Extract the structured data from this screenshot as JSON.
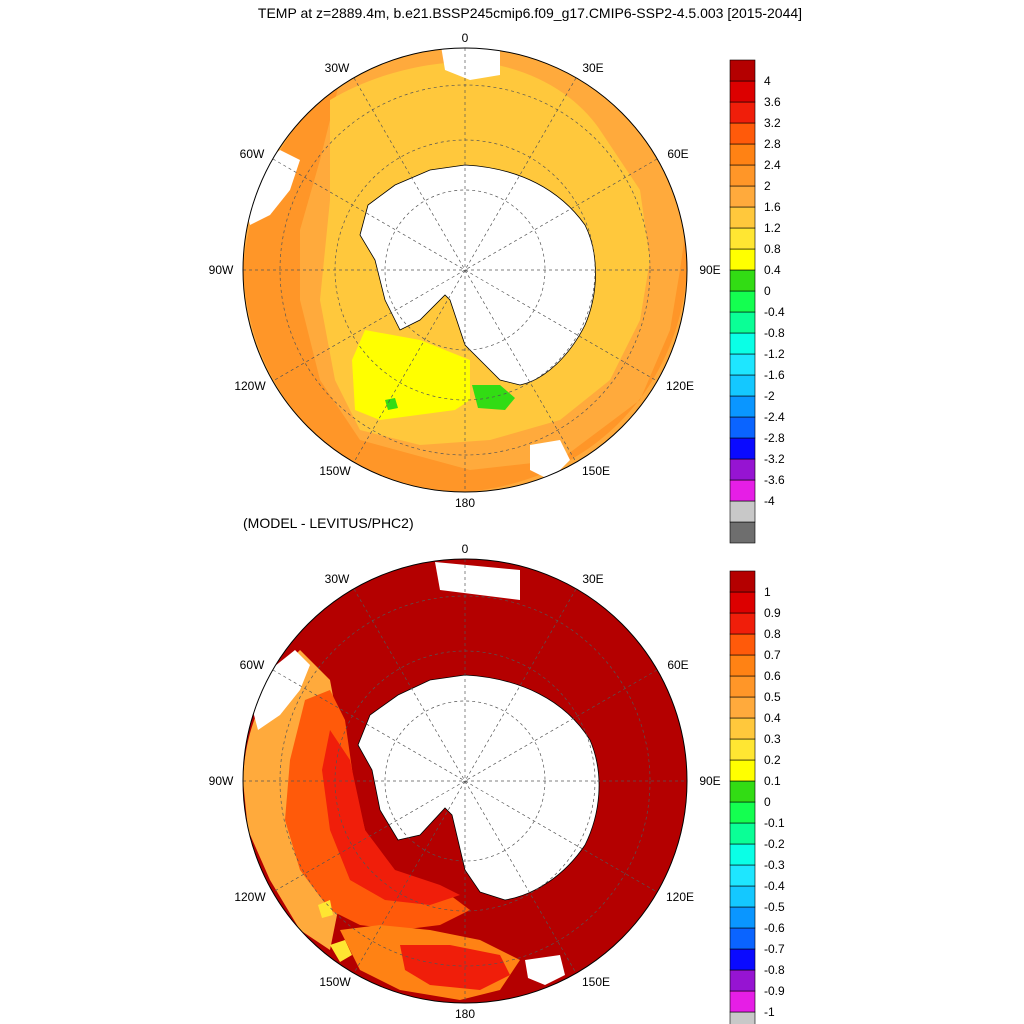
{
  "title": "TEMP at z=2889.4m, b.e21.BSSP245cmip6.f09_g17.CMIP6-SSP2-4.5.003 [2015-2044]",
  "subtitle": "(MODEL - LEVITUS/PHC2)",
  "lon_labels": [
    "0",
    "30E",
    "60E",
    "90E",
    "120E",
    "150E",
    "180",
    "150W",
    "120W",
    "90W",
    "60W",
    "30W"
  ],
  "colors": {
    "land": "#ffffff",
    "outline": "#000000",
    "cb_colors": [
      "#6e6e6e",
      "#c8c8c8",
      "#e61ee6",
      "#9614d2",
      "#0a0aff",
      "#0a64ff",
      "#0a96ff",
      "#14c8ff",
      "#1ee6ff",
      "#0affe6",
      "#0aff96",
      "#14ff50",
      "#32dc14",
      "#ffff00",
      "#ffe632",
      "#ffc83c",
      "#ffaa3c",
      "#ff9628",
      "#ff8214",
      "#ff5a0a",
      "#f01e0a",
      "#dc0000",
      "#b40000"
    ]
  },
  "colorbars": [
    {
      "labels": [
        "4",
        "3.6",
        "3.2",
        "2.8",
        "2.4",
        "2",
        "1.6",
        "1.2",
        "0.8",
        "0.4",
        "0",
        "-0.4",
        "-0.8",
        "-1.2",
        "-1.6",
        "-2",
        "-2.4",
        "-2.8",
        "-3.2",
        "-3.6",
        "-4"
      ]
    },
    {
      "labels": [
        "1",
        "0.9",
        "0.8",
        "0.7",
        "0.6",
        "0.5",
        "0.4",
        "0.3",
        "0.2",
        "0.1",
        "0",
        "-0.1",
        "-0.2",
        "-0.3",
        "-0.4",
        "-0.5",
        "-0.6",
        "-0.7",
        "-0.8",
        "-0.9",
        "-1"
      ]
    }
  ]
}
